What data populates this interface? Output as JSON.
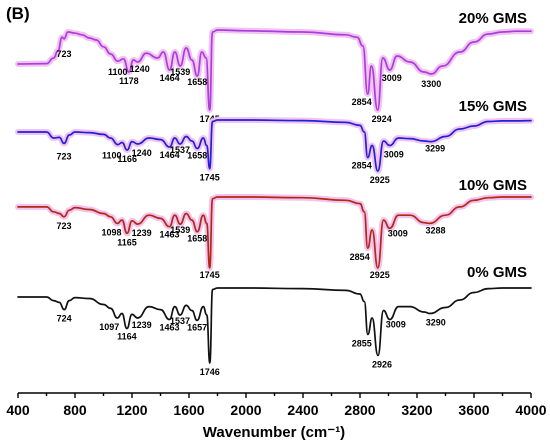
{
  "chart_data": {
    "type": "line",
    "panel_label": "(B)",
    "xlabel": "Wavenumber (cm⁻¹)",
    "ylabel": "",
    "xlim": [
      400,
      4000
    ],
    "x_ticks": [
      400,
      800,
      1200,
      1600,
      2000,
      2400,
      2800,
      3200,
      3600,
      4000
    ],
    "y_ticks_shown": false,
    "grid": false,
    "legend": "right-side labels above each trace",
    "series": [
      {
        "name": "20% GMS",
        "color": "#a93ee0",
        "halo": "#f3c3f0",
        "x": [
          400,
          600,
          650,
          680,
          710,
          723,
          750,
          800,
          850,
          900,
          950,
          1000,
          1050,
          1100,
          1140,
          1178,
          1210,
          1240,
          1300,
          1380,
          1420,
          1464,
          1500,
          1539,
          1580,
          1620,
          1658,
          1690,
          1720,
          1745,
          1765,
          1800,
          2000,
          2400,
          2700,
          2780,
          2820,
          2854,
          2880,
          2924,
          2960,
          3009,
          3060,
          3150,
          3250,
          3300,
          3380,
          3500,
          3600,
          3700,
          3800,
          3900,
          4000
        ],
        "y": [
          0.85,
          0.84,
          0.7,
          0.52,
          0.18,
          0.22,
          0.05,
          0.08,
          0.12,
          0.2,
          0.25,
          0.42,
          0.6,
          0.78,
          0.72,
          1.05,
          0.75,
          0.8,
          0.58,
          0.7,
          0.55,
          1.0,
          0.55,
          0.9,
          0.45,
          0.75,
          1.15,
          0.55,
          0.7,
          2.0,
          0.05,
          0.0,
          0.02,
          0.05,
          0.12,
          0.18,
          0.4,
          1.6,
          0.9,
          2.0,
          0.7,
          1.0,
          0.65,
          0.8,
          1.05,
          1.1,
          0.9,
          0.55,
          0.3,
          0.1,
          0.05,
          0.03,
          0.03
        ],
        "peaks": [
          {
            "x": 723,
            "y": 0.22,
            "label": "723"
          },
          {
            "x": 1100,
            "y": 0.78,
            "label": "1100"
          },
          {
            "x": 1178,
            "y": 1.05,
            "label": "1178"
          },
          {
            "x": 1240,
            "y": 0.8,
            "label": "1240"
          },
          {
            "x": 1464,
            "y": 1.0,
            "label": "1464"
          },
          {
            "x": 1539,
            "y": 0.9,
            "label": "1539"
          },
          {
            "x": 1658,
            "y": 1.15,
            "label": "1658"
          },
          {
            "x": 1745,
            "y": 2.0,
            "label": "1745"
          },
          {
            "x": 2854,
            "y": 1.6,
            "label": "2854"
          },
          {
            "x": 2924,
            "y": 2.0,
            "label": "2924"
          },
          {
            "x": 3009,
            "y": 1.0,
            "label": "3009"
          },
          {
            "x": 3300,
            "y": 1.1,
            "label": "3300"
          }
        ]
      },
      {
        "name": "15% GMS",
        "color": "#1e22d8",
        "halo": "#f3c3f0",
        "x": [
          400,
          600,
          650,
          690,
          723,
          760,
          800,
          900,
          1000,
          1050,
          1100,
          1130,
          1166,
          1200,
          1240,
          1320,
          1400,
          1464,
          1500,
          1537,
          1580,
          1620,
          1658,
          1700,
          1725,
          1745,
          1765,
          1800,
          2000,
          2400,
          2700,
          2800,
          2830,
          2854,
          2885,
          2925,
          2965,
          3009,
          3070,
          3150,
          3250,
          3299,
          3400,
          3500,
          3600,
          3700,
          3800,
          3900,
          4000
        ],
        "y": [
          0.4,
          0.4,
          0.6,
          0.58,
          0.78,
          0.5,
          0.4,
          0.42,
          0.48,
          0.6,
          0.82,
          0.75,
          1.0,
          0.72,
          0.8,
          0.6,
          0.65,
          0.9,
          0.6,
          0.8,
          0.55,
          0.7,
          0.95,
          0.6,
          0.85,
          1.62,
          0.05,
          0.0,
          0.0,
          0.02,
          0.08,
          0.18,
          0.4,
          1.25,
          0.85,
          1.7,
          0.7,
          0.85,
          0.6,
          0.62,
          0.7,
          0.72,
          0.55,
          0.3,
          0.2,
          0.05,
          0.03,
          0.03,
          0.02
        ],
        "peaks": [
          {
            "x": 723,
            "y": 0.78,
            "label": "723"
          },
          {
            "x": 1100,
            "y": 0.82,
            "label": "1100"
          },
          {
            "x": 1166,
            "y": 1.0,
            "label": "1166"
          },
          {
            "x": 1240,
            "y": 0.8,
            "label": "1240"
          },
          {
            "x": 1464,
            "y": 0.9,
            "label": "1464"
          },
          {
            "x": 1537,
            "y": 0.8,
            "label": "1537"
          },
          {
            "x": 1658,
            "y": 0.95,
            "label": "1658"
          },
          {
            "x": 1745,
            "y": 1.62,
            "label": "1745"
          },
          {
            "x": 2854,
            "y": 1.25,
            "label": "2854"
          },
          {
            "x": 2925,
            "y": 1.7,
            "label": "2925"
          },
          {
            "x": 3009,
            "y": 0.85,
            "label": "3009"
          },
          {
            "x": 3299,
            "y": 0.72,
            "label": "3299"
          }
        ]
      },
      {
        "name": "10% GMS",
        "color": "#b02a14",
        "halo": "#f3c3f0",
        "x": [
          400,
          600,
          650,
          690,
          723,
          760,
          800,
          900,
          1000,
          1050,
          1098,
          1130,
          1165,
          1200,
          1239,
          1320,
          1400,
          1463,
          1500,
          1539,
          1580,
          1620,
          1658,
          1700,
          1725,
          1745,
          1765,
          1800,
          2000,
          2400,
          2700,
          2800,
          2830,
          2854,
          2885,
          2925,
          2965,
          3009,
          3070,
          3150,
          3250,
          3288,
          3400,
          3500,
          3600,
          3700,
          3800,
          3900,
          4000
        ],
        "y": [
          0.3,
          0.3,
          0.45,
          0.5,
          0.6,
          0.4,
          0.32,
          0.38,
          0.5,
          0.6,
          0.8,
          0.7,
          1.1,
          0.72,
          0.82,
          0.55,
          0.65,
          0.9,
          0.55,
          0.82,
          0.5,
          0.7,
          1.05,
          0.55,
          0.8,
          2.15,
          0.05,
          0.0,
          0.0,
          0.02,
          0.1,
          0.2,
          0.45,
          1.55,
          1.0,
          2.15,
          0.7,
          0.95,
          0.55,
          0.55,
          0.78,
          0.8,
          0.55,
          0.3,
          0.1,
          0.02,
          0.0,
          0.0,
          0.0
        ],
        "peaks": [
          {
            "x": 723,
            "y": 0.6,
            "label": "723"
          },
          {
            "x": 1098,
            "y": 0.8,
            "label": "1098"
          },
          {
            "x": 1165,
            "y": 1.1,
            "label": "1165"
          },
          {
            "x": 1239,
            "y": 0.82,
            "label": "1239"
          },
          {
            "x": 1463,
            "y": 0.9,
            "label": "1463"
          },
          {
            "x": 1539,
            "y": 0.82,
            "label": "1539"
          },
          {
            "x": 1658,
            "y": 1.05,
            "label": "1658"
          },
          {
            "x": 1745,
            "y": 2.15,
            "label": "1745"
          },
          {
            "x": 2854,
            "y": 1.55,
            "label": "2854"
          },
          {
            "x": 2925,
            "y": 2.15,
            "label": "2925"
          },
          {
            "x": 3009,
            "y": 0.95,
            "label": "3009"
          },
          {
            "x": 3288,
            "y": 0.8,
            "label": "3288"
          }
        ]
      },
      {
        "name": "0% GMS",
        "color": "#111111",
        "halo": "",
        "x": [
          400,
          600,
          650,
          690,
          724,
          760,
          800,
          900,
          1000,
          1050,
          1097,
          1130,
          1164,
          1200,
          1239,
          1320,
          1400,
          1463,
          1500,
          1537,
          1580,
          1620,
          1657,
          1700,
          1725,
          1746,
          1765,
          1800,
          2000,
          2400,
          2700,
          2800,
          2830,
          2855,
          2885,
          2926,
          2965,
          3009,
          3070,
          3150,
          3250,
          3290,
          3400,
          3500,
          3600,
          3700,
          3800,
          3900,
          4000
        ],
        "y": [
          0.3,
          0.3,
          0.42,
          0.48,
          0.72,
          0.42,
          0.32,
          0.35,
          0.55,
          0.68,
          1.0,
          0.85,
          1.35,
          0.88,
          1.0,
          0.62,
          0.72,
          1.05,
          0.62,
          0.9,
          0.58,
          0.75,
          1.08,
          0.62,
          0.9,
          2.5,
          0.05,
          0.0,
          0.0,
          0.02,
          0.08,
          0.2,
          0.45,
          1.55,
          1.0,
          2.25,
          0.75,
          1.05,
          0.62,
          0.62,
          0.8,
          0.85,
          0.65,
          0.4,
          0.15,
          0.02,
          0.0,
          0.0,
          0.0
        ],
        "peaks": [
          {
            "x": 724,
            "y": 0.72,
            "label": "724"
          },
          {
            "x": 1097,
            "y": 1.0,
            "label": "1097"
          },
          {
            "x": 1164,
            "y": 1.35,
            "label": "1164"
          },
          {
            "x": 1239,
            "y": 1.0,
            "label": "1239"
          },
          {
            "x": 1463,
            "y": 1.05,
            "label": "1463"
          },
          {
            "x": 1537,
            "y": 0.9,
            "label": "1537"
          },
          {
            "x": 1657,
            "y": 1.08,
            "label": "1657"
          },
          {
            "x": 1746,
            "y": 2.5,
            "label": "1746"
          },
          {
            "x": 2855,
            "y": 1.55,
            "label": "2855"
          },
          {
            "x": 2926,
            "y": 2.25,
            "label": "2926"
          },
          {
            "x": 3009,
            "y": 1.05,
            "label": "3009"
          },
          {
            "x": 3290,
            "y": 0.85,
            "label": "3290"
          }
        ]
      }
    ]
  }
}
